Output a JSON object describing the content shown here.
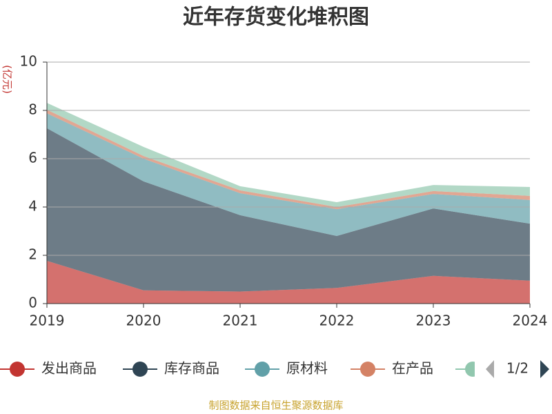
{
  "chart_data": {
    "type": "stacked_area",
    "title": "近年存货变化堆积图",
    "y_label": "(亿元)",
    "categories": [
      "2019",
      "2020",
      "2021",
      "2022",
      "2023",
      "2024"
    ],
    "series": [
      {
        "name": "发出商品",
        "color": "#c23531",
        "values": [
          1.77,
          0.55,
          0.5,
          0.65,
          1.15,
          0.95
        ]
      },
      {
        "name": "库存商品",
        "color": "#2f4554",
        "values": [
          5.49,
          4.51,
          3.16,
          2.15,
          2.79,
          2.36
        ]
      },
      {
        "name": "原材料",
        "color": "#61a0a8",
        "values": [
          0.62,
          0.94,
          0.91,
          1.11,
          0.6,
          0.98
        ]
      },
      {
        "name": "在产品",
        "color": "#d48265",
        "values": [
          0.15,
          0.11,
          0.12,
          0.09,
          0.12,
          0.17
        ]
      },
      {
        "name": null,
        "color": "#91c7ae",
        "values": [
          0.28,
          0.38,
          0.17,
          0.2,
          0.25,
          0.37
        ]
      }
    ],
    "ylim": [
      0,
      10
    ],
    "yticks": [
      0,
      2,
      4,
      6,
      8,
      10
    ],
    "grid": true,
    "legend_page": "1/2",
    "source": "制图数据来自恒生聚源数据库"
  }
}
